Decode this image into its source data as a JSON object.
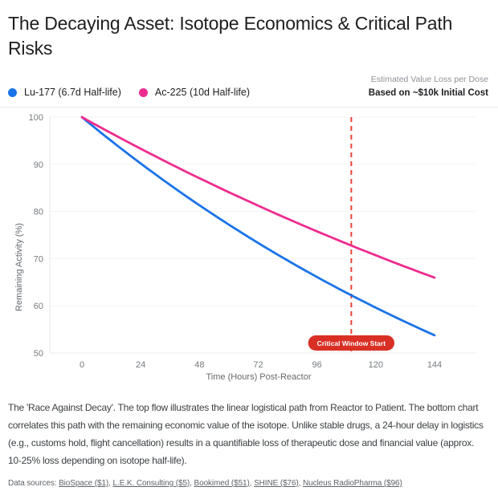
{
  "header": {
    "title": "The Decaying Asset: Isotope Economics & Critical Path Risks",
    "note_line1": "Estimated Value Loss per Dose",
    "note_line2": "Based on ~$10k Initial Cost"
  },
  "chart_data": {
    "type": "line",
    "xlabel": "Time (Hours) Post-Reactor",
    "ylabel": "Remaining Activity (%)",
    "x_ticks": [
      0,
      24,
      48,
      72,
      96,
      120,
      144
    ],
    "y_ticks": [
      50,
      60,
      70,
      80,
      90,
      100
    ],
    "xlim": [
      0,
      144
    ],
    "ylim": [
      50,
      100
    ],
    "grid": "horizontal",
    "legend_position": "top-left",
    "x": [
      0,
      24,
      48,
      72,
      96,
      120,
      144
    ],
    "series": [
      {
        "name": "Lu-177 (6.7d Half-life)",
        "color": "#1a73e8",
        "half_life_hours": 160.8,
        "values": [
          100,
          90.2,
          81.3,
          73.3,
          66.1,
          59.6,
          53.8
        ]
      },
      {
        "name": "Ac-225 (10d Half-life)",
        "color": "#ee2c8f",
        "half_life_hours": 240,
        "values": [
          100,
          93.3,
          87.1,
          81.2,
          75.8,
          70.7,
          66.0
        ]
      }
    ],
    "annotation": {
      "label": "Critical Window Start",
      "x_hours": 110,
      "line_color": "#e8453a",
      "badge_color": "#d93025"
    }
  },
  "caption": {
    "text": "The 'Race Against Decay'. The top flow illustrates the linear logistical path from Reactor to Patient. The bottom chart correlates this path with the remaining economic value of the isotope. Unlike stable drugs, a 24-hour delay in logistics (e.g., customs hold, flight cancellation) results in a quantifiable loss of therapeutic dose and financial value (approx. 10-25% loss depending on isotope half-life)."
  },
  "sources": {
    "label": "Data sources:",
    "links": [
      "BioSpace ($1)",
      "L.E.K. Consulting ($5)",
      "Bookimed ($51)",
      "SHINE ($76)",
      "Nucleus RadioPharma ($96)"
    ]
  }
}
